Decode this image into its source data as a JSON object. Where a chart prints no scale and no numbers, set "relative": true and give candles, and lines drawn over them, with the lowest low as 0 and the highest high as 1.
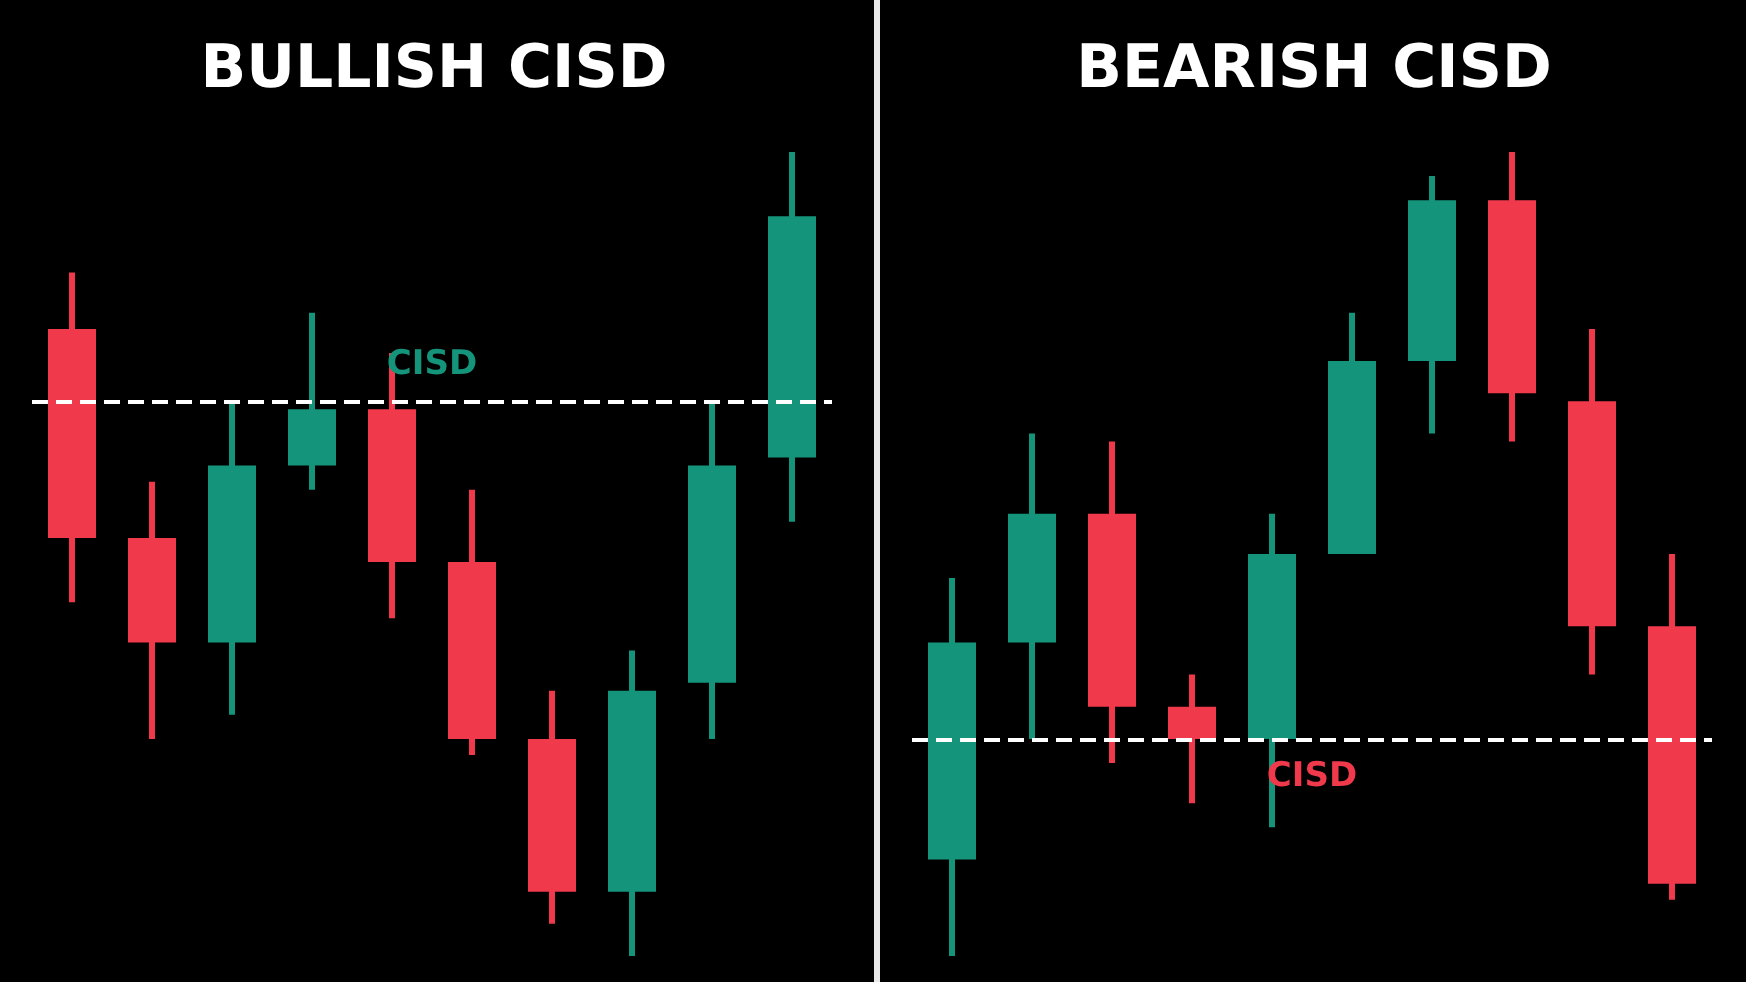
{
  "chart_data": [
    {
      "type": "candlestick",
      "title": "BULLISH CISD",
      "relative": true,
      "categories": [
        null,
        null,
        null,
        null,
        null,
        null,
        null,
        null,
        null,
        null
      ],
      "ohlc": [
        [
          0.78,
          0.85,
          0.44,
          0.52
        ],
        [
          0.52,
          0.59,
          0.27,
          0.39
        ],
        [
          0.39,
          0.69,
          0.3,
          0.61
        ],
        [
          0.61,
          0.8,
          0.58,
          0.68
        ],
        [
          0.68,
          0.75,
          0.42,
          0.49
        ],
        [
          0.49,
          0.58,
          0.25,
          0.27
        ],
        [
          0.27,
          0.33,
          0.04,
          0.08
        ],
        [
          0.08,
          0.38,
          0,
          0.33
        ],
        [
          0.34,
          0.69,
          0.27,
          0.61
        ],
        [
          0.62,
          1,
          0.54,
          0.92
        ]
      ],
      "colors": [
        "#f0394b",
        "#f0394b",
        "#14957b",
        "#14957b",
        "#f0394b",
        "#f0394b",
        "#f0394b",
        "#14957b",
        "#14957b",
        "#14957b"
      ],
      "ref_lines": [
        {
          "axis": "y",
          "value": 0.69,
          "label": "CISD",
          "color": "#ffffff",
          "line_style": "dashed"
        }
      ]
    },
    {
      "type": "candlestick",
      "title": "BEARISH CISD",
      "relative": true,
      "categories": [
        null,
        null,
        null,
        null,
        null,
        null,
        null,
        null,
        null,
        null
      ],
      "ohlc": [
        [
          0.12,
          0.47,
          0,
          0.39
        ],
        [
          0.39,
          0.65,
          0.27,
          0.55
        ],
        [
          0.55,
          0.64,
          0.24,
          0.31
        ],
        [
          0.31,
          0.35,
          0.19,
          0.27
        ],
        [
          0.27,
          0.55,
          0.16,
          0.5
        ],
        [
          0.5,
          0.8,
          0.5,
          0.74
        ],
        [
          0.74,
          0.97,
          0.65,
          0.94
        ],
        [
          0.94,
          1,
          0.64,
          0.7
        ],
        [
          0.69,
          0.78,
          0.35,
          0.41
        ],
        [
          0.41,
          0.5,
          0.07,
          0.09
        ]
      ],
      "colors": [
        "#14957b",
        "#14957b",
        "#f0394b",
        "#f0394b",
        "#14957b",
        "#14957b",
        "#14957b",
        "#f0394b",
        "#f0394b",
        "#f0394b"
      ],
      "ref_lines": [
        {
          "axis": "y",
          "value": 0.27,
          "label": "CISD",
          "color": "#ffffff",
          "line_style": "dashed"
        }
      ]
    }
  ]
}
